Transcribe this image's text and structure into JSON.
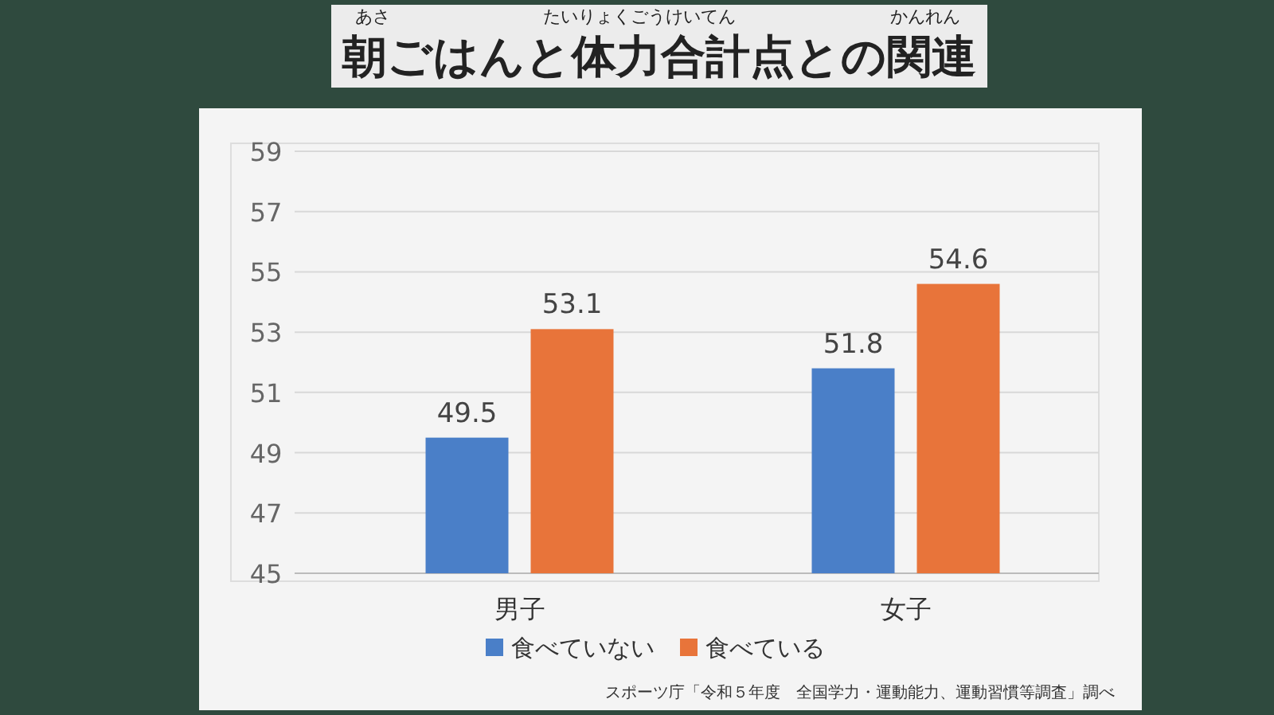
{
  "chart_data": {
    "type": "bar",
    "title": "朝ごはんと体力合計点との関連",
    "categories": [
      "男子",
      "女子"
    ],
    "series": [
      {
        "name": "食べていない",
        "color": "#4a7fc8",
        "values": [
          49.5,
          51.8
        ]
      },
      {
        "name": "食べている",
        "color": "#e8743a",
        "values": [
          53.1,
          54.6
        ]
      }
    ],
    "ylim": [
      45,
      59
    ],
    "yticks": [
      45,
      47,
      49,
      51,
      53,
      55,
      57,
      59
    ],
    "grid": "y",
    "legend": "bottom",
    "data_labels": true,
    "annotations": [
      "あさ",
      "たいりょくごうけいてん",
      "かんれん",
      "スポーツ庁「令和５年度　全国学力・運動能力、運動習慣等調査」調べ"
    ]
  }
}
